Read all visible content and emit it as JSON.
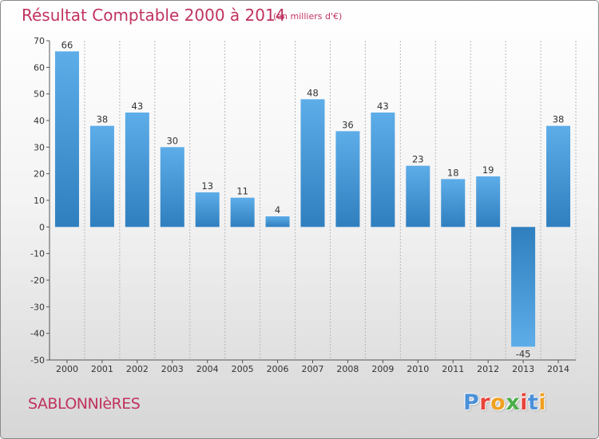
{
  "chart_data": {
    "type": "bar",
    "title": "Résultat Comptable 2000 à 2014",
    "subtitle": "(en milliers d'€)",
    "categories": [
      "2000",
      "2001",
      "2002",
      "2003",
      "2004",
      "2005",
      "2006",
      "2007",
      "2008",
      "2009",
      "2010",
      "2011",
      "2012",
      "2013",
      "2014"
    ],
    "values": [
      66,
      38,
      43,
      30,
      13,
      11,
      4,
      48,
      36,
      43,
      23,
      18,
      19,
      -45,
      38
    ],
    "ylim": [
      -50,
      70
    ],
    "yticks": [
      -50,
      -40,
      -30,
      -20,
      -10,
      0,
      10,
      20,
      30,
      40,
      50,
      60,
      70
    ],
    "xlabel": "",
    "ylabel": "",
    "grid": "vertical",
    "bar_color_light": "#5dade9",
    "bar_color_dark": "#2f7fbf"
  },
  "footer": {
    "commune": "SABLONNIèRES",
    "brand_letters": [
      "P",
      "r",
      "o",
      "x",
      "i",
      "t",
      "i"
    ],
    "brand_colors": [
      "#4a90d9",
      "#e8443a",
      "#f0a020",
      "#4aae48",
      "#e8443a",
      "#4a90d9",
      "#f0a020"
    ]
  },
  "colors": {
    "title": "#c0335f"
  }
}
